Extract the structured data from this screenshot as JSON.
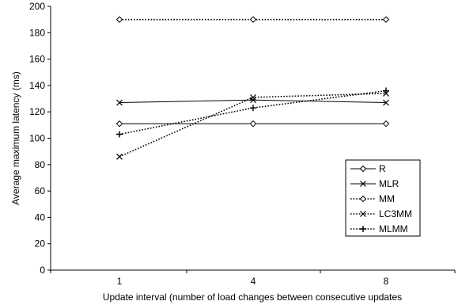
{
  "chart_data": {
    "type": "line",
    "ylabel": "Average maximum latency (ms)",
    "xlabel": "Update interval (number of load changes between consecutive updates",
    "categories": [
      "1",
      "4",
      "8"
    ],
    "ylim": [
      0,
      200
    ],
    "yticks": [
      0,
      20,
      40,
      60,
      80,
      100,
      120,
      140,
      160,
      180,
      200
    ],
    "grid": false,
    "legend_position": "right",
    "series": [
      {
        "name": "R",
        "values": [
          111,
          111,
          111
        ],
        "marker": "diamond",
        "dash": "solid"
      },
      {
        "name": "MLR",
        "values": [
          127,
          129,
          127
        ],
        "marker": "x",
        "dash": "solid"
      },
      {
        "name": "MM",
        "values": [
          190,
          190,
          190
        ],
        "marker": "diamond",
        "dash": "dotted"
      },
      {
        "name": "LC3MM",
        "values": [
          86,
          131,
          134
        ],
        "marker": "x",
        "dash": "dotted"
      },
      {
        "name": "MLMM",
        "values": [
          103,
          123,
          136
        ],
        "marker": "plus",
        "dash": "dotted"
      }
    ]
  }
}
